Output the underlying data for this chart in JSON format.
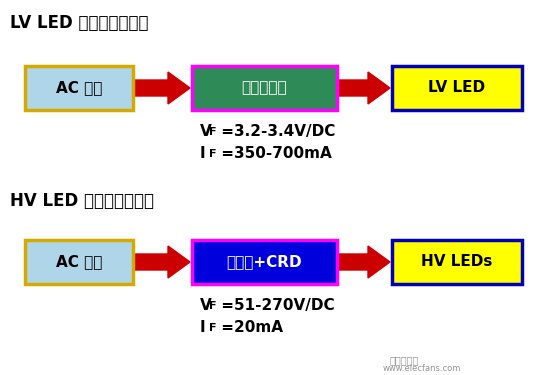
{
  "bg_color": "#ffffff",
  "title1": "LV LED 灯具电路方案：",
  "title2": "HV LED 灯具电路方案：",
  "row1": {
    "box1_text": "AC 市电",
    "box1_face": "#aed6e8",
    "box1_edge": "#d4aa00",
    "box2_text": "驱动恒流源",
    "box2_face": "#2e8b57",
    "box2_edge": "#ff00ff",
    "box3_text": "LV LED",
    "box3_face": "#ffff00",
    "box3_edge": "#0000bb",
    "vf_label": "V",
    "vf_sub": "F",
    "vf_val": " =3.2-3.4V/DC",
    "if_label": "I",
    "if_sub": "F",
    "if_val": " =350-700mA",
    "arrow_color": "#cc0000"
  },
  "row2": {
    "box1_text": "AC 市电",
    "box1_face": "#aed6e8",
    "box1_edge": "#d4aa00",
    "box2_text": "整流桥+CRD",
    "box2_face": "#0000dd",
    "box2_edge": "#ff00ff",
    "box3_text": "HV LEDs",
    "box3_face": "#ffff00",
    "box3_edge": "#0000bb",
    "vf_label": "V",
    "vf_sub": "F",
    "vf_val": " =51-270V/DC",
    "if_label": "I",
    "if_sub": "F",
    "if_val": " =20mA",
    "arrow_color": "#cc0000"
  },
  "figw": 5.59,
  "figh": 3.75,
  "dpi": 100
}
